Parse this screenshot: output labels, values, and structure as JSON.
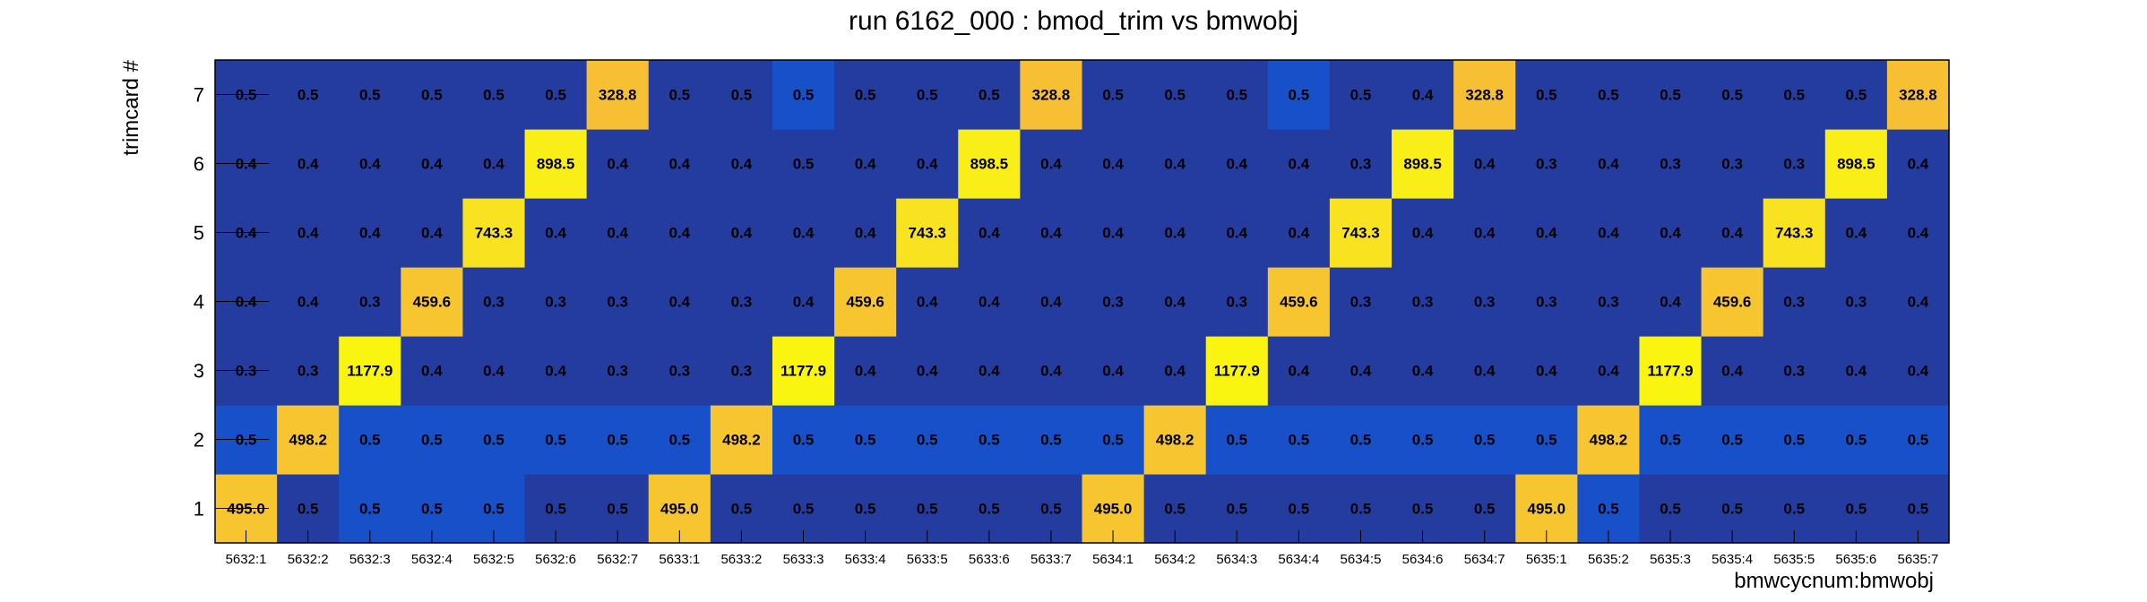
{
  "chart_data": {
    "type": "heatmap",
    "title": "run 6162_000 : bmod_trim vs bmwobj",
    "xlabel": "bmwcycnum:bmwobj",
    "ylabel": "trimcard #",
    "x_categories": [
      "5632:1",
      "5632:2",
      "5632:3",
      "5632:4",
      "5632:5",
      "5632:6",
      "5632:7",
      "5633:1",
      "5633:2",
      "5633:3",
      "5633:4",
      "5633:5",
      "5633:6",
      "5633:7",
      "5634:1",
      "5634:2",
      "5634:3",
      "5634:4",
      "5634:5",
      "5634:6",
      "5634:7",
      "5635:1",
      "5635:2",
      "5635:3",
      "5635:4",
      "5635:5",
      "5635:6",
      "5635:7"
    ],
    "y_categories": [
      "1",
      "2",
      "3",
      "4",
      "5",
      "6",
      "7"
    ],
    "values": [
      [
        "495.0",
        "0.5",
        "0.5",
        "0.5",
        "0.5",
        "0.5",
        "0.5",
        "495.0",
        "0.5",
        "0.5",
        "0.5",
        "0.5",
        "0.5",
        "0.5",
        "495.0",
        "0.5",
        "0.5",
        "0.5",
        "0.5",
        "0.5",
        "0.5",
        "495.0",
        "0.5",
        "0.5",
        "0.5",
        "0.5",
        "0.5",
        "0.5"
      ],
      [
        "0.5",
        "498.2",
        "0.5",
        "0.5",
        "0.5",
        "0.5",
        "0.5",
        "0.5",
        "498.2",
        "0.5",
        "0.5",
        "0.5",
        "0.5",
        "0.5",
        "0.5",
        "498.2",
        "0.5",
        "0.5",
        "0.5",
        "0.5",
        "0.5",
        "0.5",
        "498.2",
        "0.5",
        "0.5",
        "0.5",
        "0.5",
        "0.5"
      ],
      [
        "0.3",
        "0.3",
        "1177.9",
        "0.4",
        "0.4",
        "0.4",
        "0.3",
        "0.3",
        "0.3",
        "1177.9",
        "0.4",
        "0.4",
        "0.4",
        "0.4",
        "0.4",
        "0.4",
        "1177.9",
        "0.4",
        "0.4",
        "0.4",
        "0.4",
        "0.4",
        "0.4",
        "1177.9",
        "0.4",
        "0.3",
        "0.4",
        "0.4"
      ],
      [
        "0.4",
        "0.4",
        "0.3",
        "459.6",
        "0.3",
        "0.3",
        "0.3",
        "0.4",
        "0.3",
        "0.4",
        "459.6",
        "0.4",
        "0.4",
        "0.4",
        "0.3",
        "0.4",
        "0.3",
        "459.6",
        "0.3",
        "0.3",
        "0.3",
        "0.3",
        "0.3",
        "0.4",
        "459.6",
        "0.3",
        "0.3",
        "0.4"
      ],
      [
        "0.4",
        "0.4",
        "0.4",
        "0.4",
        "743.3",
        "0.4",
        "0.4",
        "0.4",
        "0.4",
        "0.4",
        "0.4",
        "743.3",
        "0.4",
        "0.4",
        "0.4",
        "0.4",
        "0.4",
        "0.4",
        "743.3",
        "0.4",
        "0.4",
        "0.4",
        "0.4",
        "0.4",
        "0.4",
        "743.3",
        "0.4",
        "0.4"
      ],
      [
        "0.4",
        "0.4",
        "0.4",
        "0.4",
        "0.4",
        "898.5",
        "0.4",
        "0.4",
        "0.4",
        "0.5",
        "0.4",
        "0.4",
        "898.5",
        "0.4",
        "0.4",
        "0.4",
        "0.4",
        "0.4",
        "0.3",
        "898.5",
        "0.4",
        "0.3",
        "0.4",
        "0.3",
        "0.3",
        "0.3",
        "898.5",
        "0.4"
      ],
      [
        "0.5",
        "0.5",
        "0.5",
        "0.5",
        "0.5",
        "0.5",
        "328.8",
        "0.5",
        "0.5",
        "0.5",
        "0.5",
        "0.5",
        "0.5",
        "328.8",
        "0.5",
        "0.5",
        "0.5",
        "0.5",
        "0.5",
        "0.4",
        "328.8",
        "0.5",
        "0.5",
        "0.5",
        "0.5",
        "0.5",
        "0.5",
        "328.8"
      ]
    ],
    "cell_colors": [
      [
        "#f7c530",
        "#243ca0",
        "#1750c8",
        "#1750c8",
        "#1750c8",
        "#243ca0",
        "#243ca0",
        "#f7c530",
        "#243ca0",
        "#243ca0",
        "#243ca0",
        "#243ca0",
        "#243ca0",
        "#243ca0",
        "#f7c530",
        "#243ca0",
        "#243ca0",
        "#243ca0",
        "#243ca0",
        "#243ca0",
        "#243ca0",
        "#f7c530",
        "#1750c8",
        "#243ca0",
        "#243ca0",
        "#243ca0",
        "#243ca0",
        "#243ca0"
      ],
      [
        "#1750c8",
        "#f7c530",
        "#1750c8",
        "#1750c8",
        "#1750c8",
        "#1750c8",
        "#1750c8",
        "#1750c8",
        "#f7c530",
        "#1750c8",
        "#1750c8",
        "#1750c8",
        "#1750c8",
        "#1750c8",
        "#1750c8",
        "#f7c530",
        "#1750c8",
        "#1750c8",
        "#1750c8",
        "#1750c8",
        "#1750c8",
        "#1750c8",
        "#f7c530",
        "#1750c8",
        "#1750c8",
        "#1750c8",
        "#1750c8",
        "#1750c8"
      ],
      [
        "#243ca0",
        "#243ca0",
        "#f9f511",
        "#243ca0",
        "#243ca0",
        "#243ca0",
        "#243ca0",
        "#243ca0",
        "#243ca0",
        "#f9f511",
        "#243ca0",
        "#243ca0",
        "#243ca0",
        "#243ca0",
        "#243ca0",
        "#243ca0",
        "#f9f511",
        "#243ca0",
        "#243ca0",
        "#243ca0",
        "#243ca0",
        "#243ca0",
        "#243ca0",
        "#f9f511",
        "#243ca0",
        "#243ca0",
        "#243ca0",
        "#243ca0"
      ],
      [
        "#243ca0",
        "#243ca0",
        "#243ca0",
        "#f7c530",
        "#243ca0",
        "#243ca0",
        "#243ca0",
        "#243ca0",
        "#243ca0",
        "#243ca0",
        "#f7c530",
        "#243ca0",
        "#243ca0",
        "#243ca0",
        "#243ca0",
        "#243ca0",
        "#243ca0",
        "#f7c530",
        "#243ca0",
        "#243ca0",
        "#243ca0",
        "#243ca0",
        "#243ca0",
        "#243ca0",
        "#f7c530",
        "#243ca0",
        "#243ca0",
        "#243ca0"
      ],
      [
        "#243ca0",
        "#243ca0",
        "#243ca0",
        "#243ca0",
        "#f9e21f",
        "#243ca0",
        "#243ca0",
        "#243ca0",
        "#243ca0",
        "#243ca0",
        "#243ca0",
        "#f9e21f",
        "#243ca0",
        "#243ca0",
        "#243ca0",
        "#243ca0",
        "#243ca0",
        "#243ca0",
        "#f9e21f",
        "#243ca0",
        "#243ca0",
        "#243ca0",
        "#243ca0",
        "#243ca0",
        "#243ca0",
        "#f9e21f",
        "#243ca0",
        "#243ca0"
      ],
      [
        "#243ca0",
        "#243ca0",
        "#243ca0",
        "#243ca0",
        "#243ca0",
        "#f9ee18",
        "#243ca0",
        "#243ca0",
        "#243ca0",
        "#243ca0",
        "#243ca0",
        "#243ca0",
        "#f9ee18",
        "#243ca0",
        "#243ca0",
        "#243ca0",
        "#243ca0",
        "#243ca0",
        "#243ca0",
        "#f9ee18",
        "#243ca0",
        "#243ca0",
        "#243ca0",
        "#243ca0",
        "#243ca0",
        "#243ca0",
        "#f9ee18",
        "#243ca0"
      ],
      [
        "#243ca0",
        "#243ca0",
        "#243ca0",
        "#243ca0",
        "#243ca0",
        "#243ca0",
        "#f7c034",
        "#243ca0",
        "#243ca0",
        "#1750c8",
        "#243ca0",
        "#243ca0",
        "#243ca0",
        "#f7c034",
        "#243ca0",
        "#243ca0",
        "#243ca0",
        "#1750c8",
        "#243ca0",
        "#243ca0",
        "#f7c034",
        "#243ca0",
        "#243ca0",
        "#243ca0",
        "#243ca0",
        "#243ca0",
        "#243ca0",
        "#f7c034"
      ]
    ],
    "grid": false,
    "legend": "none"
  }
}
